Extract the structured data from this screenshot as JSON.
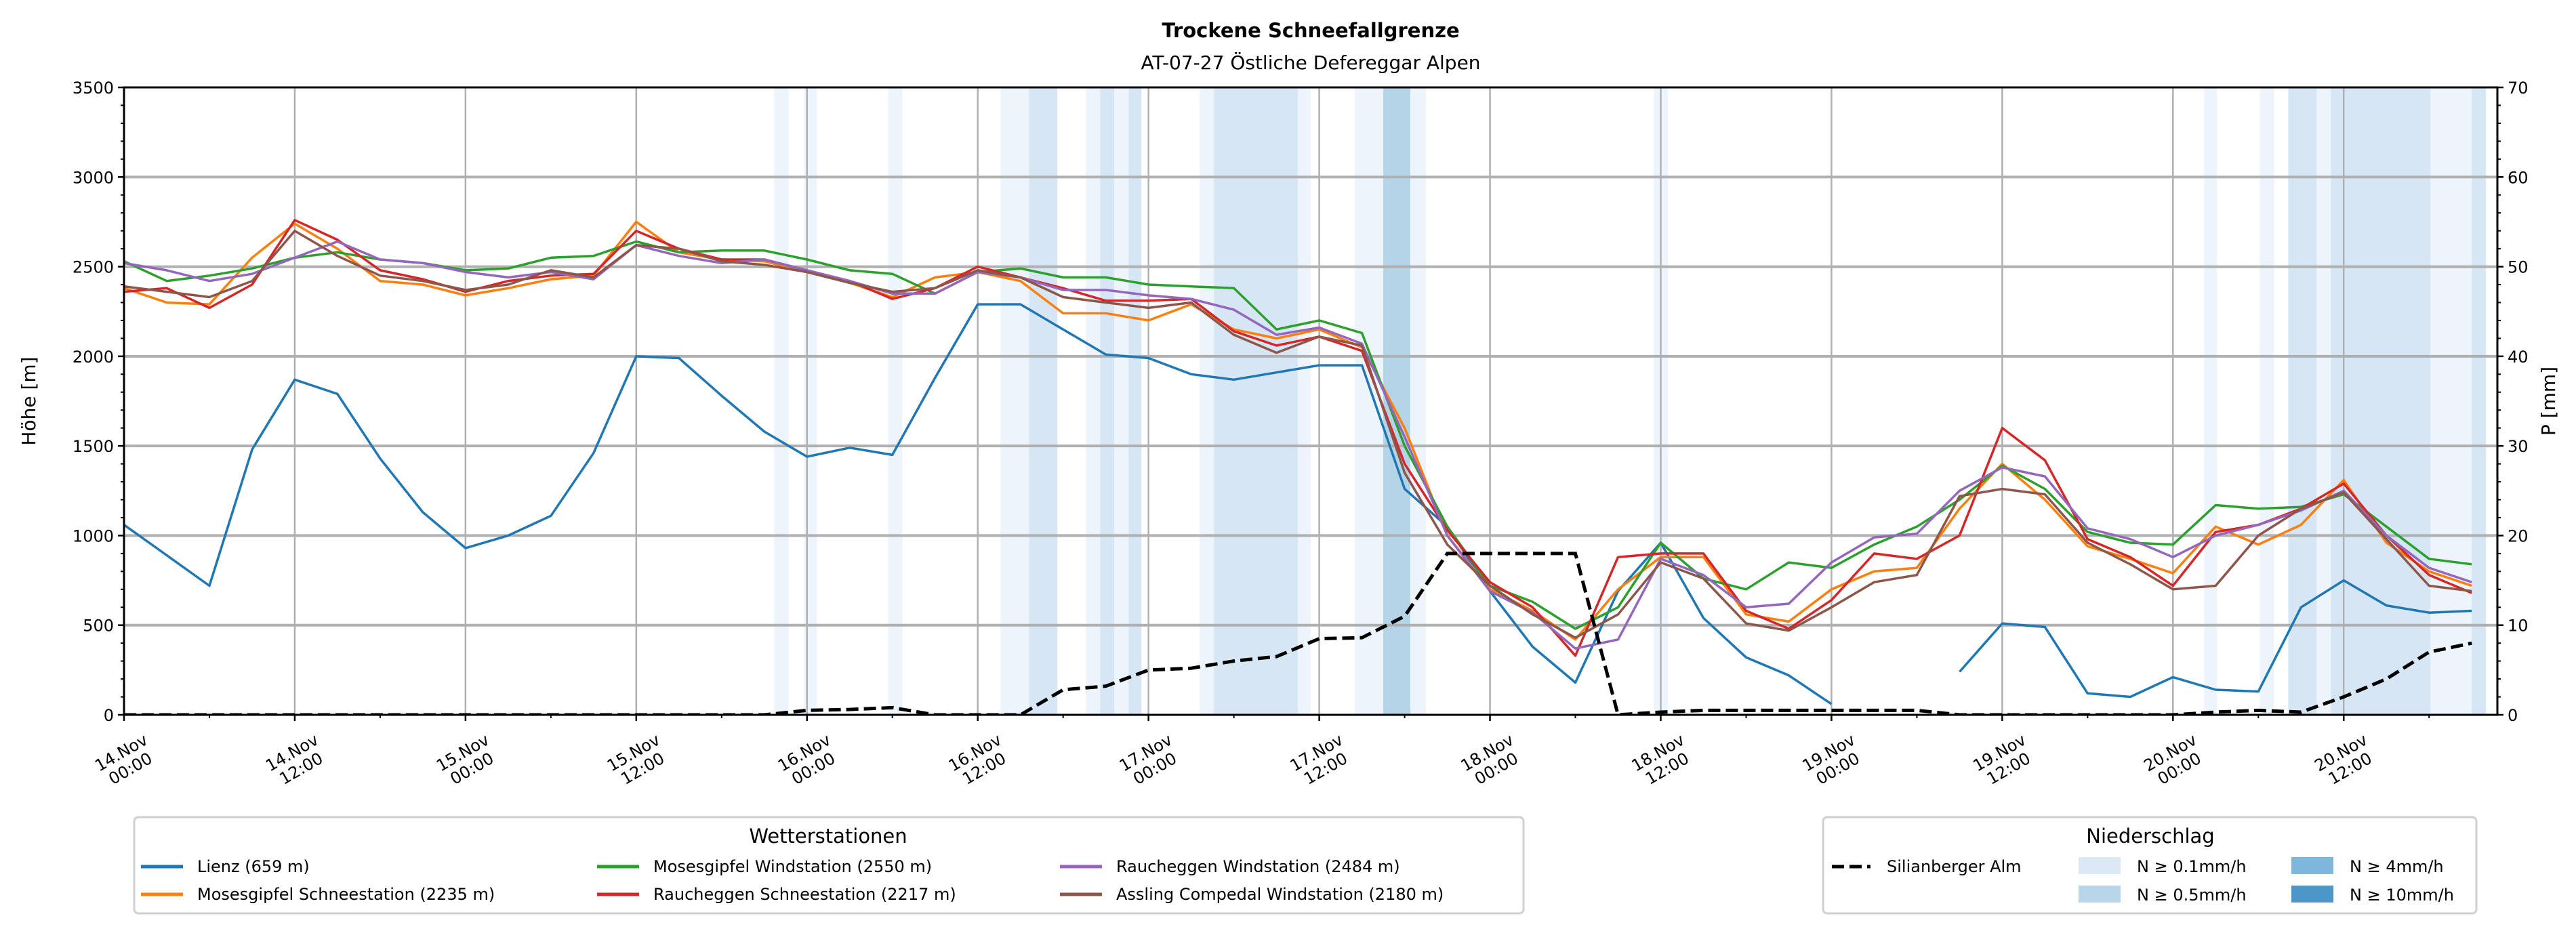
{
  "chart_data": {
    "type": "line",
    "title": "Trockene Schneefallgrenze",
    "subtitle": "AT-07-27 Östliche Defereggar Alpen",
    "ylabel": "Höhe [m]",
    "y2label": "P [mm]",
    "ylim": [
      0,
      3500
    ],
    "y2lim": [
      0,
      70
    ],
    "xlim_hours": [
      0,
      166.8
    ],
    "x_start_hour": 0,
    "x_step_hours": 3,
    "grid": true,
    "yticks": [
      "0",
      "500",
      "1000",
      "1500",
      "2000",
      "2500",
      "3000",
      "3500"
    ],
    "y2ticks": [
      "0",
      "10",
      "20",
      "30",
      "40",
      "50",
      "60",
      "70"
    ],
    "xticks": [
      [
        "14.Nov",
        "00:00"
      ],
      [
        "14.Nov",
        "12:00"
      ],
      [
        "15.Nov",
        "00:00"
      ],
      [
        "15.Nov",
        "12:00"
      ],
      [
        "16.Nov",
        "00:00"
      ],
      [
        "16.Nov",
        "12:00"
      ],
      [
        "17.Nov",
        "00:00"
      ],
      [
        "17.Nov",
        "12:00"
      ],
      [
        "18.Nov",
        "00:00"
      ],
      [
        "18.Nov",
        "12:00"
      ],
      [
        "19.Nov",
        "00:00"
      ],
      [
        "19.Nov",
        "12:00"
      ],
      [
        "20.Nov",
        "00:00"
      ],
      [
        "20.Nov",
        "12:00"
      ]
    ],
    "series": [
      {
        "name": "Lienz (659 m)",
        "color": "#1f77b4",
        "values": [
          1060,
          890,
          720,
          1480,
          1870,
          1790,
          1430,
          1130,
          930,
          1000,
          1110,
          1460,
          2000,
          1990,
          1780,
          1580,
          1440,
          1490,
          1450,
          1880,
          2290,
          2290,
          2150,
          2010,
          1990,
          1900,
          1870,
          1910,
          1950,
          1950,
          1260,
          1050,
          690,
          380,
          180,
          690,
          960,
          540,
          320,
          220,
          60,
          null,
          null,
          240,
          510,
          490,
          120,
          100,
          210,
          140,
          130,
          600,
          750,
          610,
          570,
          580
        ]
      },
      {
        "name": "Mosesgipfel Schneestation (2235 m)",
        "color": "#ff7f0e",
        "values": [
          2380,
          2300,
          2290,
          2550,
          2740,
          2600,
          2420,
          2400,
          2340,
          2380,
          2430,
          2450,
          2750,
          2580,
          2540,
          2530,
          2470,
          2410,
          2330,
          2440,
          2470,
          2420,
          2240,
          2240,
          2200,
          2290,
          2150,
          2100,
          2150,
          2050,
          1600,
          1000,
          700,
          580,
          420,
          700,
          880,
          880,
          560,
          520,
          700,
          800,
          820,
          1150,
          1400,
          1200,
          940,
          870,
          790,
          1050,
          950,
          1060,
          1310,
          960,
          800,
          720
        ]
      },
      {
        "name": "Mosesgipfel Windstation (2550 m)",
        "color": "#2ca02c",
        "values": [
          2530,
          2420,
          2450,
          2490,
          2550,
          2580,
          2540,
          2520,
          2480,
          2490,
          2550,
          2560,
          2640,
          2580,
          2590,
          2590,
          2540,
          2480,
          2460,
          2350,
          2470,
          2490,
          2440,
          2440,
          2400,
          2390,
          2380,
          2150,
          2200,
          2130,
          1500,
          1050,
          720,
          630,
          480,
          600,
          960,
          760,
          700,
          850,
          820,
          950,
          1050,
          1200,
          1390,
          1260,
          1020,
          960,
          950,
          1170,
          1150,
          1160,
          1230,
          1050,
          870,
          840
        ]
      },
      {
        "name": "Raucheggen Schneestation (2217 m)",
        "color": "#d62728",
        "values": [
          2360,
          2380,
          2270,
          2400,
          2760,
          2650,
          2480,
          2430,
          2360,
          2420,
          2450,
          2460,
          2700,
          2600,
          2540,
          2540,
          2480,
          2420,
          2320,
          2380,
          2500,
          2440,
          2380,
          2310,
          2310,
          2320,
          2140,
          2060,
          2110,
          2030,
          1400,
          1030,
          740,
          600,
          330,
          880,
          900,
          900,
          580,
          480,
          640,
          900,
          870,
          1000,
          1600,
          1420,
          980,
          880,
          720,
          1020,
          1060,
          1150,
          1290,
          1000,
          780,
          680
        ]
      },
      {
        "name": "Raucheggen Windstation (2484 m)",
        "color": "#9467bd",
        "values": [
          2520,
          2480,
          2420,
          2460,
          2550,
          2640,
          2540,
          2520,
          2470,
          2440,
          2470,
          2430,
          2620,
          2560,
          2520,
          2540,
          2480,
          2420,
          2350,
          2350,
          2470,
          2440,
          2370,
          2370,
          2340,
          2320,
          2260,
          2120,
          2160,
          2070,
          1550,
          1000,
          690,
          570,
          370,
          420,
          870,
          780,
          600,
          620,
          850,
          990,
          1010,
          1250,
          1380,
          1330,
          1040,
          980,
          880,
          1000,
          1060,
          1140,
          1250,
          1000,
          820,
          740
        ]
      },
      {
        "name": "Assling Compedal Windstation (2180 m)",
        "color": "#8c564b",
        "values": [
          2390,
          2360,
          2330,
          2420,
          2700,
          2560,
          2450,
          2420,
          2370,
          2400,
          2480,
          2440,
          2620,
          2600,
          2530,
          2510,
          2470,
          2410,
          2360,
          2380,
          2480,
          2440,
          2330,
          2300,
          2270,
          2300,
          2120,
          2020,
          2110,
          2060,
          1350,
          950,
          720,
          560,
          430,
          560,
          850,
          760,
          510,
          470,
          600,
          740,
          780,
          1220,
          1260,
          1230,
          960,
          840,
          700,
          720,
          1000,
          1150,
          1240,
          980,
          720,
          690
        ]
      }
    ],
    "precip_series": {
      "name": "Silianberger Alm",
      "color": "#000000",
      "axis": "right",
      "values": [
        0,
        0,
        0,
        0,
        0,
        0,
        0,
        0,
        0,
        0,
        0,
        0,
        0,
        0,
        0,
        0,
        0.5,
        0.6,
        0.8,
        0,
        0,
        0,
        2.8,
        3.2,
        5,
        5.2,
        6,
        6.5,
        8.5,
        8.6,
        11,
        18,
        18,
        18,
        18,
        0,
        0.3,
        0.5,
        0.5,
        0.5,
        0.5,
        0.5,
        0.5,
        0,
        0,
        0,
        0,
        0,
        0,
        0.3,
        0.5,
        0.3,
        2,
        4,
        7,
        8
      ]
    },
    "precip_bands": [
      {
        "from": 45.7,
        "to": 46.7,
        "level": "0.1"
      },
      {
        "from": 47.8,
        "to": 48.7,
        "level": "0.1"
      },
      {
        "from": 53.7,
        "to": 54.7,
        "level": "0.1"
      },
      {
        "from": 61.6,
        "to": 63.6,
        "level": "0.1"
      },
      {
        "from": 63.6,
        "to": 65.6,
        "level": "0.5"
      },
      {
        "from": 67.6,
        "to": 68.6,
        "level": "0.1"
      },
      {
        "from": 68.6,
        "to": 69.6,
        "level": "0.5"
      },
      {
        "from": 69.6,
        "to": 70.6,
        "level": "0.1"
      },
      {
        "from": 70.6,
        "to": 71.5,
        "level": "0.5"
      },
      {
        "from": 75.6,
        "to": 76.6,
        "level": "0.1"
      },
      {
        "from": 76.6,
        "to": 82.5,
        "level": "0.5"
      },
      {
        "from": 82.5,
        "to": 83.4,
        "level": "0.1"
      },
      {
        "from": 86.5,
        "to": 88.5,
        "level": "0.1"
      },
      {
        "from": 88.5,
        "to": 90.4,
        "level": "4"
      },
      {
        "from": 90.4,
        "to": 91.5,
        "level": "0.1"
      },
      {
        "from": 107.5,
        "to": 108.5,
        "level": "0.1"
      },
      {
        "from": 146.2,
        "to": 147.1,
        "level": "0.1"
      },
      {
        "from": 150.1,
        "to": 151.1,
        "level": "0.1"
      },
      {
        "from": 152.1,
        "to": 154.1,
        "level": "0.5"
      },
      {
        "from": 154.1,
        "to": 155.1,
        "level": "0.1"
      },
      {
        "from": 155.1,
        "to": 162.1,
        "level": "0.5"
      },
      {
        "from": 162.1,
        "to": 165,
        "level": "0.1"
      },
      {
        "from": 165,
        "to": 166,
        "level": "0.5"
      }
    ],
    "band_colors": {
      "0.1": "#eef4fb",
      "0.5": "#d7e6f4",
      "4": "#b4d4e8",
      "10": "#8fbfdd"
    },
    "legend_stations": {
      "title": "Wetterstationen",
      "placement": "bottom-left"
    },
    "legend_precip": {
      "title": "Niederschlag",
      "placement": "bottom-right",
      "line_label": "Silianberger Alm",
      "patches": [
        {
          "label": "N ≥ 0.1mm/h",
          "color": "#dbe9f6"
        },
        {
          "label": "N ≥ 0.5mm/h",
          "color": "#b9d5ea"
        },
        {
          "label": "N ≥ 4mm/h",
          "color": "#7fb7da"
        },
        {
          "label": "N ≥ 10mm/h",
          "color": "#4a97c8"
        }
      ]
    }
  }
}
